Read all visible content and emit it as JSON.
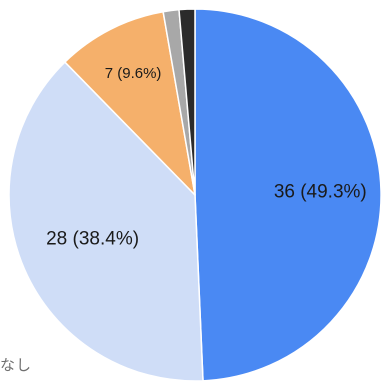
{
  "chart_data": {
    "type": "pie",
    "slices": [
      {
        "value": 36,
        "percent": 49.3,
        "label": "36 (49.3%)",
        "color": "#4a89f3"
      },
      {
        "value": 28,
        "percent": 38.4,
        "label": "28 (38.4%)",
        "color": "#cfddf7"
      },
      {
        "value": 7,
        "percent": 9.6,
        "label": "7 (9.6%)",
        "color": "#f5b06b"
      },
      {
        "value": 1,
        "percent": 1.4,
        "label": "",
        "color": "#a8a8a8"
      },
      {
        "value": 1,
        "percent": 1.4,
        "label": "",
        "color": "#2b2b2b"
      }
    ],
    "legend": {
      "visible_fragment": "なし"
    }
  }
}
